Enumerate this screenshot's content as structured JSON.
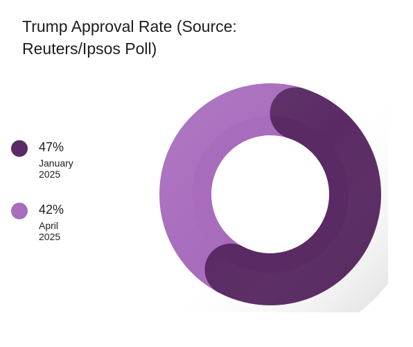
{
  "chart_data": {
    "type": "pie",
    "variant": "donut",
    "title": "Trump Approval Rate (Source: Reuters/Ipsos Poll)",
    "categories": [
      "January 2025",
      "April 2025"
    ],
    "values": [
      47,
      42
    ],
    "value_labels": [
      "47%",
      "42%"
    ],
    "colors": [
      "#5a2a64",
      "#a86cbd"
    ],
    "legend_position": "left"
  }
}
